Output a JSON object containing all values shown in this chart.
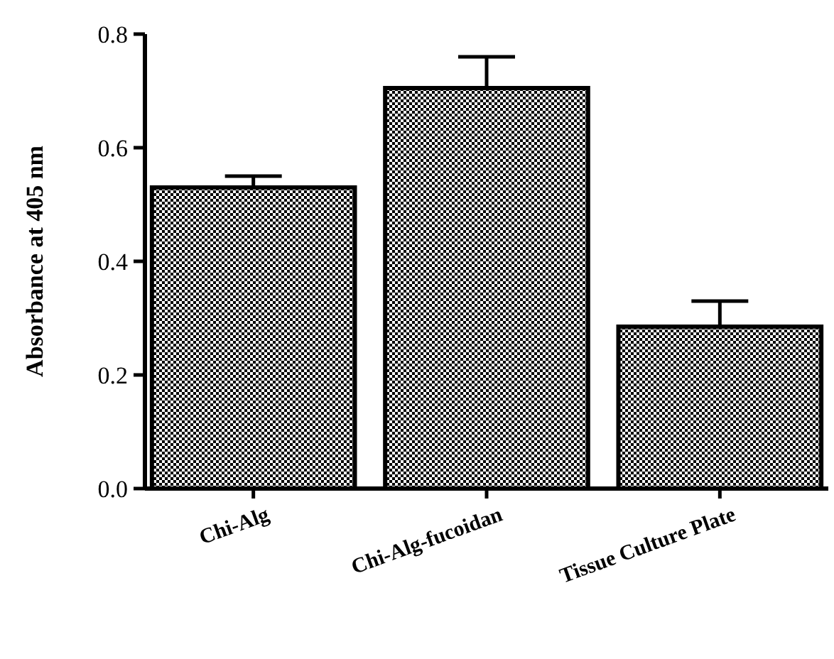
{
  "chart_data": {
    "type": "bar",
    "ylabel": "Absorbance at 405 nm",
    "categories": [
      "Chi-Alg",
      "Chi-Alg-fucoidan",
      "Tissue Culture Plate"
    ],
    "values": [
      0.53,
      0.705,
      0.285
    ],
    "errors": [
      [
        0.53,
        0.55
      ],
      [
        0.705,
        0.76
      ],
      [
        0.285,
        0.33
      ]
    ],
    "color": "#000000",
    "ylim": [
      0,
      0.8
    ],
    "yticks": [
      {
        "value": 0,
        "label": "0.0"
      },
      {
        "value": 0.2,
        "label": "0.2"
      },
      {
        "value": 0.4,
        "label": "0.4"
      },
      {
        "value": 0.6,
        "label": "0.6"
      },
      {
        "value": 0.8,
        "label": "0.8"
      }
    ],
    "grid": false
  }
}
